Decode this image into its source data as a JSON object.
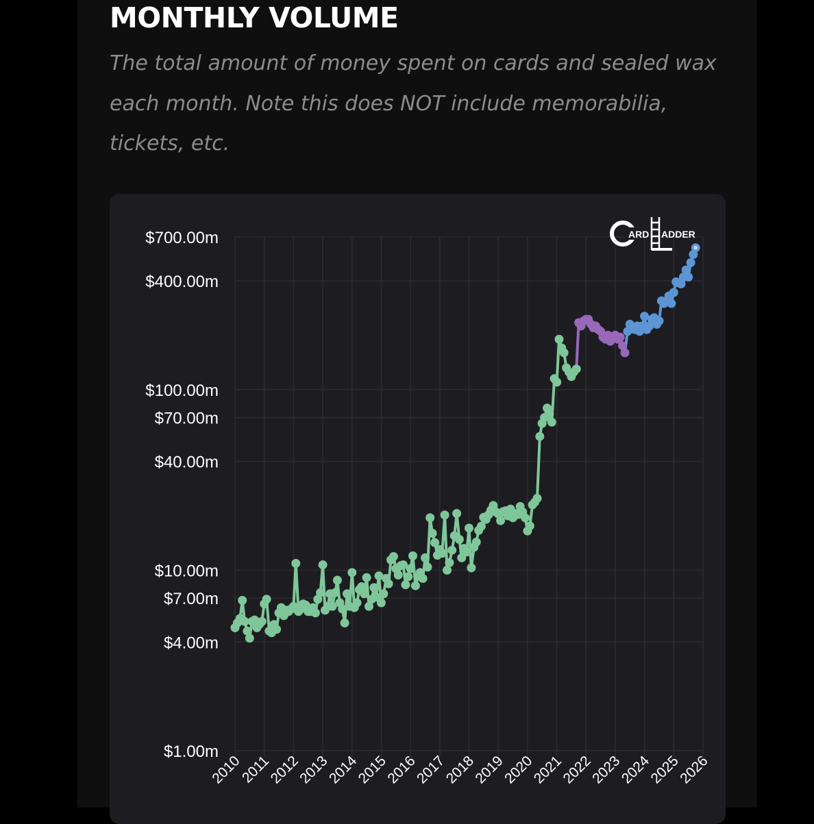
{
  "header": {
    "title": "MONTHLY VOLUME",
    "subtitle": "The total amount of money spent on cards and sealed wax each month. Note this does NOT include memorabilia, tickets, etc."
  },
  "logo": {
    "icon": "card-ladder-logo-icon",
    "word1": "ARD",
    "word2": "ADDER"
  },
  "colors": {
    "page_bg": "#000000",
    "panel_bg": "#0f0f10",
    "card_bg": "#1d1d21",
    "grid": "#2c2c31",
    "series_green": "#7fc79a",
    "series_purple": "#9a68bb",
    "series_blue": "#5d95d4"
  },
  "chart_data": {
    "type": "line",
    "title": "MONTHLY VOLUME",
    "xlabel": "",
    "ylabel": "",
    "y_scale": "log",
    "ylim": [
      1,
      700
    ],
    "xlim": [
      2010,
      2026
    ],
    "y_ticks": [
      {
        "value": 1,
        "label": "$1.00m"
      },
      {
        "value": 4,
        "label": "$4.00m"
      },
      {
        "value": 7,
        "label": "$7.00m"
      },
      {
        "value": 10,
        "label": "$10.00m"
      },
      {
        "value": 40,
        "label": "$40.00m"
      },
      {
        "value": 70,
        "label": "$70.00m"
      },
      {
        "value": 100,
        "label": "$100.00m"
      },
      {
        "value": 400,
        "label": "$400.00m"
      },
      {
        "value": 700,
        "label": "$700.00m"
      }
    ],
    "x_ticks": [
      "2010",
      "2011",
      "2012",
      "2013",
      "2014",
      "2015",
      "2016",
      "2017",
      "2018",
      "2019",
      "2020",
      "2021",
      "2022",
      "2023",
      "2024",
      "2025",
      "2026"
    ],
    "grid": true,
    "series": [
      {
        "name": "monthly-volume-early",
        "color": "#7fc79a",
        "points": [
          [
            2010.0,
            4.8
          ],
          [
            2010.08,
            5.1
          ],
          [
            2010.17,
            5.4
          ],
          [
            2010.25,
            6.8
          ],
          [
            2010.33,
            5.2
          ],
          [
            2010.42,
            4.6
          ],
          [
            2010.5,
            4.2
          ],
          [
            2010.58,
            5.2
          ],
          [
            2010.67,
            5.3
          ],
          [
            2010.75,
            4.8
          ],
          [
            2010.83,
            5.0
          ],
          [
            2010.92,
            5.2
          ],
          [
            2011.0,
            6.5
          ],
          [
            2011.08,
            6.9
          ],
          [
            2011.17,
            4.6
          ],
          [
            2011.25,
            4.5
          ],
          [
            2011.33,
            5.0
          ],
          [
            2011.42,
            4.7
          ],
          [
            2011.5,
            5.8
          ],
          [
            2011.58,
            6.2
          ],
          [
            2011.67,
            5.6
          ],
          [
            2011.75,
            6.0
          ],
          [
            2011.83,
            5.9
          ],
          [
            2011.92,
            6.1
          ],
          [
            2012.0,
            6.3
          ],
          [
            2012.08,
            10.9
          ],
          [
            2012.17,
            5.9
          ],
          [
            2012.25,
            6.1
          ],
          [
            2012.33,
            6.5
          ],
          [
            2012.42,
            6.4
          ],
          [
            2012.5,
            5.9
          ],
          [
            2012.58,
            5.9
          ],
          [
            2012.67,
            6.2
          ],
          [
            2012.75,
            5.8
          ],
          [
            2012.83,
            6.9
          ],
          [
            2012.92,
            7.5
          ],
          [
            2013.0,
            10.7
          ],
          [
            2013.08,
            6.0
          ],
          [
            2013.17,
            6.3
          ],
          [
            2013.25,
            7.4
          ],
          [
            2013.33,
            6.3
          ],
          [
            2013.42,
            7.5
          ],
          [
            2013.5,
            8.8
          ],
          [
            2013.58,
            6.6
          ],
          [
            2013.67,
            6.1
          ],
          [
            2013.75,
            5.1
          ],
          [
            2013.83,
            7.4
          ],
          [
            2013.92,
            6.3
          ],
          [
            2014.0,
            9.7
          ],
          [
            2014.08,
            6.2
          ],
          [
            2014.17,
            6.6
          ],
          [
            2014.25,
            7.8
          ],
          [
            2014.33,
            8.1
          ],
          [
            2014.42,
            7.4
          ],
          [
            2014.5,
            9.1
          ],
          [
            2014.58,
            6.3
          ],
          [
            2014.67,
            6.9
          ],
          [
            2014.75,
            8.0
          ],
          [
            2014.83,
            7.1
          ],
          [
            2014.92,
            9.3
          ],
          [
            2015.0,
            6.6
          ],
          [
            2015.08,
            7.4
          ],
          [
            2015.17,
            9.0
          ],
          [
            2015.25,
            8.4
          ],
          [
            2015.33,
            11.4
          ],
          [
            2015.42,
            11.9
          ],
          [
            2015.5,
            10.2
          ],
          [
            2015.58,
            9.4
          ],
          [
            2015.67,
            10.6
          ],
          [
            2015.75,
            10.7
          ],
          [
            2015.83,
            8.3
          ],
          [
            2015.92,
            9.2
          ],
          [
            2016.0,
            10.2
          ],
          [
            2016.08,
            12.0
          ],
          [
            2016.17,
            8.2
          ],
          [
            2016.25,
            9.2
          ],
          [
            2016.33,
            9.7
          ],
          [
            2016.42,
            9.0
          ],
          [
            2016.5,
            11.7
          ],
          [
            2016.58,
            10.4
          ],
          [
            2016.67,
            19.5
          ],
          [
            2016.75,
            16.0
          ],
          [
            2016.83,
            14.2
          ],
          [
            2016.92,
            12.1
          ],
          [
            2017.0,
            13.0
          ],
          [
            2017.08,
            12.4
          ],
          [
            2017.17,
            20.2
          ],
          [
            2017.25,
            10.0
          ],
          [
            2017.33,
            11.0
          ],
          [
            2017.42,
            12.9
          ],
          [
            2017.5,
            15.5
          ],
          [
            2017.58,
            20.6
          ],
          [
            2017.67,
            14.8
          ],
          [
            2017.75,
            11.7
          ],
          [
            2017.83,
            13.2
          ],
          [
            2017.92,
            12.6
          ],
          [
            2018.0,
            17.1
          ],
          [
            2018.08,
            10.3
          ],
          [
            2018.17,
            13.4
          ],
          [
            2018.25,
            14.3
          ],
          [
            2018.33,
            16.6
          ],
          [
            2018.42,
            17.5
          ],
          [
            2018.5,
            19.6
          ],
          [
            2018.58,
            19.1
          ],
          [
            2018.67,
            20.3
          ],
          [
            2018.75,
            21.5
          ],
          [
            2018.83,
            22.8
          ],
          [
            2018.92,
            21.0
          ],
          [
            2019.0,
            20.5
          ],
          [
            2019.08,
            18.8
          ],
          [
            2019.17,
            21.1
          ],
          [
            2019.25,
            21.3
          ],
          [
            2019.33,
            20.0
          ],
          [
            2019.42,
            21.8
          ],
          [
            2019.5,
            19.5
          ],
          [
            2019.58,
            20.6
          ],
          [
            2019.67,
            20.3
          ],
          [
            2019.75,
            22.5
          ],
          [
            2019.83,
            21.0
          ],
          [
            2019.92,
            19.5
          ],
          [
            2020.0,
            16.5
          ],
          [
            2020.08,
            17.6
          ],
          [
            2020.17,
            23.0
          ],
          [
            2020.25,
            23.8
          ],
          [
            2020.33,
            25.0
          ],
          [
            2020.42,
            55.0
          ],
          [
            2020.5,
            65.0
          ],
          [
            2020.58,
            70.0
          ],
          [
            2020.67,
            79.0
          ],
          [
            2020.75,
            73.0
          ],
          [
            2020.83,
            66.0
          ],
          [
            2020.92,
            115.0
          ],
          [
            2021.0,
            110.0
          ],
          [
            2021.08,
            190.0
          ],
          [
            2021.17,
            170.0
          ],
          [
            2021.25,
            160.0
          ],
          [
            2021.33,
            132.0
          ],
          [
            2021.42,
            125.0
          ],
          [
            2021.5,
            118.0
          ],
          [
            2021.58,
            125.0
          ],
          [
            2021.67,
            130.0
          ]
        ]
      },
      {
        "name": "monthly-volume-mid",
        "color": "#9a68bb",
        "points": [
          [
            2021.75,
            235.0
          ],
          [
            2021.83,
            225.0
          ],
          [
            2021.92,
            240.0
          ],
          [
            2022.0,
            245.0
          ],
          [
            2022.08,
            245.0
          ],
          [
            2022.17,
            230.0
          ],
          [
            2022.25,
            220.0
          ],
          [
            2022.33,
            225.0
          ],
          [
            2022.42,
            215.0
          ],
          [
            2022.5,
            210.0
          ],
          [
            2022.58,
            195.0
          ],
          [
            2022.67,
            190.0
          ],
          [
            2022.75,
            200.0
          ],
          [
            2022.83,
            185.0
          ],
          [
            2022.92,
            195.0
          ],
          [
            2023.0,
            200.0
          ],
          [
            2023.08,
            190.0
          ],
          [
            2023.17,
            195.0
          ],
          [
            2023.25,
            175.0
          ],
          [
            2023.33,
            160.0
          ]
        ]
      },
      {
        "name": "monthly-volume-recent",
        "color": "#5d95d4",
        "points": [
          [
            2023.42,
            210.0
          ],
          [
            2023.5,
            230.0
          ],
          [
            2023.58,
            220.0
          ],
          [
            2023.67,
            215.0
          ],
          [
            2023.75,
            225.0
          ],
          [
            2023.83,
            210.0
          ],
          [
            2023.92,
            225.0
          ],
          [
            2024.0,
            255.0
          ],
          [
            2024.08,
            215.0
          ],
          [
            2024.17,
            225.0
          ],
          [
            2024.25,
            245.0
          ],
          [
            2024.33,
            250.0
          ],
          [
            2024.42,
            230.0
          ],
          [
            2024.5,
            240.0
          ],
          [
            2024.58,
            310.0
          ],
          [
            2024.67,
            300.0
          ],
          [
            2024.75,
            310.0
          ],
          [
            2024.83,
            330.0
          ],
          [
            2024.92,
            300.0
          ],
          [
            2025.0,
            345.0
          ],
          [
            2025.08,
            395.0
          ],
          [
            2025.17,
            390.0
          ],
          [
            2025.25,
            385.0
          ],
          [
            2025.33,
            420.0
          ],
          [
            2025.42,
            460.0
          ],
          [
            2025.5,
            420.0
          ],
          [
            2025.58,
            505.0
          ],
          [
            2025.67,
            560.0
          ],
          [
            2025.75,
            610.0
          ]
        ]
      }
    ]
  }
}
